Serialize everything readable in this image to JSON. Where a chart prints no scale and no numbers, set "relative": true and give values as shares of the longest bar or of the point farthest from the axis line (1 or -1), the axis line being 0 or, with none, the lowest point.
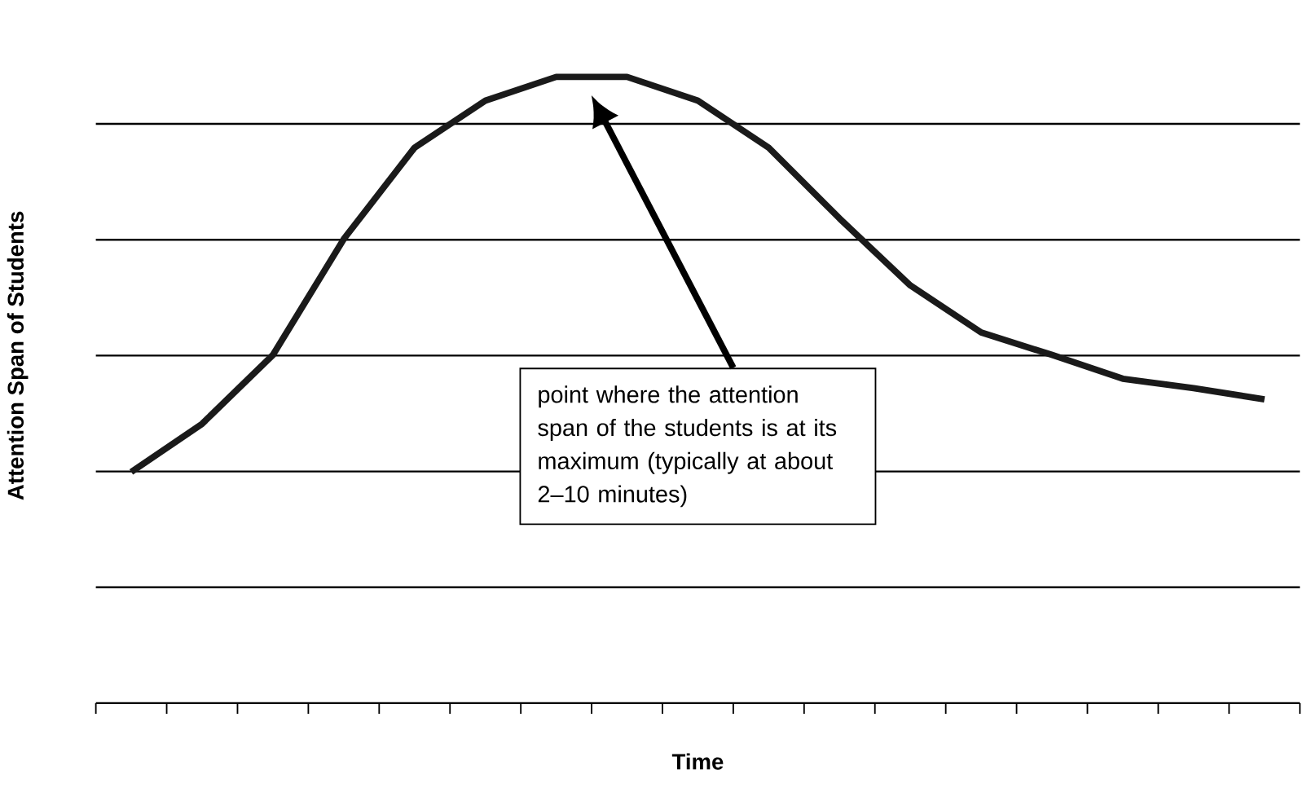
{
  "chart_data": {
    "type": "line",
    "relative": true,
    "xlabel": "Time",
    "ylabel": "Attention Span of Students",
    "categories": [
      null,
      null,
      null,
      null,
      null,
      null,
      null,
      null,
      null,
      null,
      null,
      null,
      null,
      null,
      null,
      null,
      null
    ],
    "values": [
      0.369,
      0.446,
      0.556,
      0.741,
      0.887,
      0.962,
      1,
      1,
      0.962,
      0.887,
      0.774,
      0.667,
      0.592,
      0.556,
      0.518,
      0.503,
      0.485
    ],
    "color": "#1a1a1a",
    "grid": "y",
    "marker": "none",
    "line_style": "solid",
    "annotations": [
      "point where the attention span of the students is at its maximum (typically at about 2–10 minutes)"
    ]
  }
}
